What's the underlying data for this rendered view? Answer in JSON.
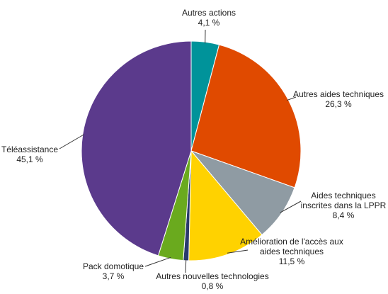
{
  "chart_data": {
    "type": "pie",
    "categories": [
      "Autres actions",
      "Autres aides techniques",
      "Aides techniques inscrites dans la LPPR",
      "Amélioration de l'accès aux aides techniques",
      "Autres nouvelles technologies",
      "Pack domotique",
      "Téléassistance"
    ],
    "values": [
      4.1,
      26.3,
      8.4,
      11.5,
      0.8,
      3.7,
      45.1
    ],
    "value_labels": [
      "4,1 %",
      "26,3 %",
      "8,4 %",
      "11,5 %",
      "0,8 %",
      "3,7 %",
      "45,1 %"
    ],
    "colors": [
      "#00939a",
      "#e04a00",
      "#8f9ba3",
      "#ffd200",
      "#2a3a6e",
      "#6aaa1e",
      "#5b3a8c"
    ]
  }
}
